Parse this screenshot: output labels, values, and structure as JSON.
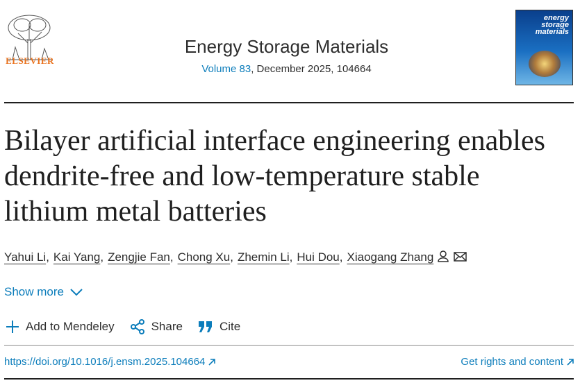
{
  "header": {
    "publisher": "ELSEVIER",
    "journal": "Energy Storage Materials",
    "volume": "Volume 83",
    "issue_details": ", December 2025, 104664",
    "cover_title": [
      "energy",
      "storage",
      "materials"
    ]
  },
  "article": {
    "title": "Bilayer artificial interface engineering enables dendrite-free and low-temperature stable lithium metal batteries",
    "authors": [
      "Yahui Li",
      "Kai Yang",
      "Zengjie Fan",
      "Chong Xu",
      "Zhemin Li",
      "Hui Dou",
      "Xiaogang Zhang"
    ],
    "author_separator": ",",
    "show_more": "Show more"
  },
  "actions": [
    "Add to Mendeley",
    "Share",
    "Cite"
  ],
  "links": {
    "doi": "https://doi.org/10.1016/j.ensm.2025.104664",
    "rights": "Get rights and content"
  }
}
